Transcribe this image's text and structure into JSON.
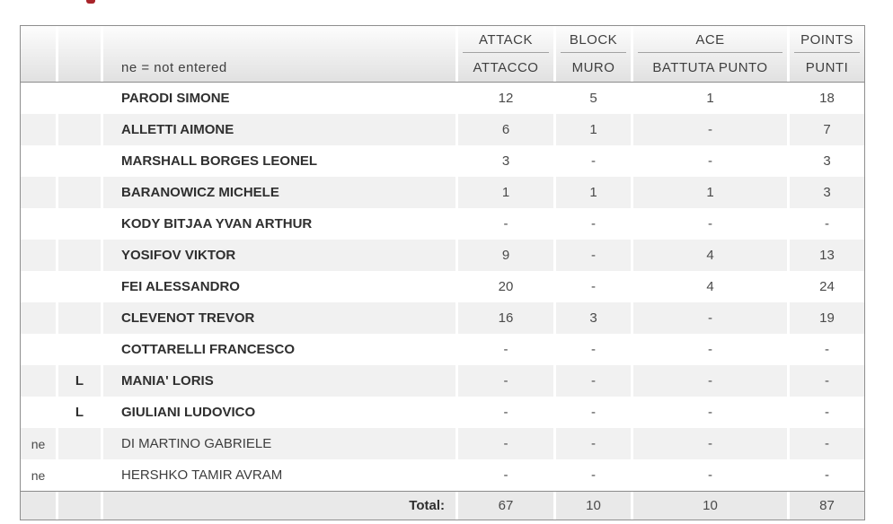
{
  "accent": {
    "fragment_color": "#a8242a"
  },
  "table": {
    "legend": "ne = not entered",
    "columns": [
      {
        "en": "ATTACK",
        "it": "ATTACCO"
      },
      {
        "en": "BLOCK",
        "it": "MURO"
      },
      {
        "en": "ACE",
        "it": "BATTUTA PUNTO"
      },
      {
        "en": "POINTS",
        "it": "PUNTI"
      }
    ],
    "rows": [
      {
        "ne": "",
        "libero": "",
        "name": "PARODI SIMONE",
        "attack": "12",
        "block": "5",
        "ace": "1",
        "points": "18"
      },
      {
        "ne": "",
        "libero": "",
        "name": "ALLETTI AIMONE",
        "attack": "6",
        "block": "1",
        "ace": "-",
        "points": "7"
      },
      {
        "ne": "",
        "libero": "",
        "name": "MARSHALL BORGES LEONEL",
        "attack": "3",
        "block": "-",
        "ace": "-",
        "points": "3"
      },
      {
        "ne": "",
        "libero": "",
        "name": "BARANOWICZ MICHELE",
        "attack": "1",
        "block": "1",
        "ace": "1",
        "points": "3"
      },
      {
        "ne": "",
        "libero": "",
        "name": "KODY BITJAA YVAN ARTHUR",
        "attack": "-",
        "block": "-",
        "ace": "-",
        "points": "-"
      },
      {
        "ne": "",
        "libero": "",
        "name": "YOSIFOV VIKTOR",
        "attack": "9",
        "block": "-",
        "ace": "4",
        "points": "13"
      },
      {
        "ne": "",
        "libero": "",
        "name": "FEI ALESSANDRO",
        "attack": "20",
        "block": "-",
        "ace": "4",
        "points": "24"
      },
      {
        "ne": "",
        "libero": "",
        "name": "CLEVENOT TREVOR",
        "attack": "16",
        "block": "3",
        "ace": "-",
        "points": "19"
      },
      {
        "ne": "",
        "libero": "",
        "name": "COTTARELLI FRANCESCO",
        "attack": "-",
        "block": "-",
        "ace": "-",
        "points": "-"
      },
      {
        "ne": "",
        "libero": "L",
        "name": "MANIA' LORIS",
        "attack": "-",
        "block": "-",
        "ace": "-",
        "points": "-"
      },
      {
        "ne": "",
        "libero": "L",
        "name": "GIULIANI LUDOVICO",
        "attack": "-",
        "block": "-",
        "ace": "-",
        "points": "-"
      },
      {
        "ne": "ne",
        "libero": "",
        "name": "DI MARTINO GABRIELE",
        "attack": "-",
        "block": "-",
        "ace": "-",
        "points": "-"
      },
      {
        "ne": "ne",
        "libero": "",
        "name": "HERSHKO TAMIR AVRAM",
        "attack": "-",
        "block": "-",
        "ace": "-",
        "points": "-"
      }
    ],
    "total": {
      "label": "Total:",
      "attack": "67",
      "block": "10",
      "ace": "10",
      "points": "87"
    }
  }
}
